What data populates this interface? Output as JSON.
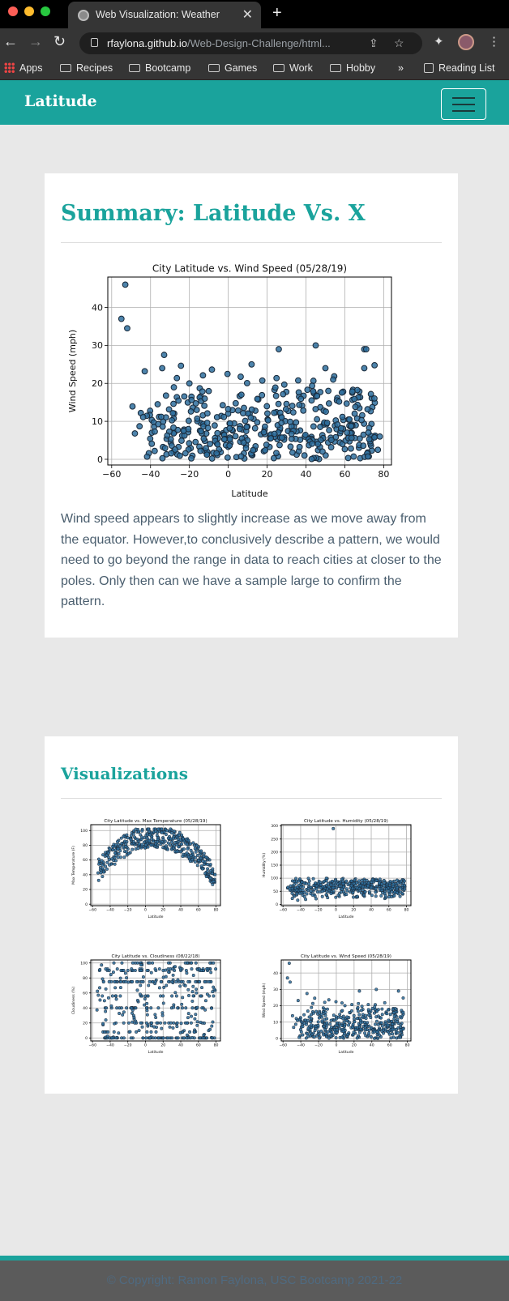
{
  "browser": {
    "tab_title": "Web Visualization: Weather",
    "url_host": "rfaylona.github.io",
    "url_path": "/Web-Design-Challenge/html...",
    "bookmarks": [
      "Apps",
      "Recipes",
      "Bootcamp",
      "Games",
      "Work",
      "Hobby"
    ],
    "overflow": "»",
    "reading_list": "Reading List"
  },
  "navbar": {
    "brand": "Latitude"
  },
  "summary": {
    "title": "Summary: Latitude Vs. X",
    "description": "Wind speed appears to slightly increase as we move away from the equator. However,to conclusively describe a pattern, we would need to go beyond the range in data to reach cities at closer to the poles. Only then can we have a sample large to confirm the pattern."
  },
  "visualizations": {
    "title": "Visualizations"
  },
  "footer": {
    "copyright": "© Copyright: Ramon Faylona, USC Bootcamp 2021-22"
  },
  "colors": {
    "teal": "#1aa39c",
    "point": "#2e6f9e",
    "point_edge": "#1a2a3a"
  },
  "chart_data": [
    {
      "id": "main-wind",
      "type": "scatter",
      "title": "City Latitude vs. Wind Speed (05/28/19)",
      "xlabel": "Latitude",
      "ylabel": "Wind Speed (mph)",
      "xlim": [
        -62,
        84
      ],
      "ylim": [
        -1.5,
        48
      ],
      "xticks": [
        -60,
        -40,
        -20,
        0,
        20,
        40,
        60,
        80
      ],
      "xtick_labels": [
        "−60",
        "−40",
        "−20",
        "0",
        "20",
        "40",
        "60",
        "80"
      ],
      "yticks": [
        0,
        10,
        20,
        30,
        40
      ],
      "grid": true,
      "highlights": [
        [
          -53,
          46
        ],
        [
          -55,
          37
        ],
        [
          -52,
          34.5
        ],
        [
          -33,
          27.5
        ],
        [
          -34,
          24
        ],
        [
          26,
          29
        ],
        [
          45,
          30
        ],
        [
          70,
          29
        ],
        [
          71,
          29
        ],
        [
          12,
          25
        ],
        [
          -20,
          20
        ],
        [
          70,
          24
        ],
        [
          50,
          24
        ],
        [
          54,
          21
        ],
        [
          78,
          6
        ],
        [
          77,
          2.5
        ]
      ],
      "generated": {
        "seed": 42,
        "n": 420,
        "xmin": -50,
        "xmax": 76,
        "ymax": 22,
        "skew": 0.55
      }
    },
    {
      "id": "thumb-temp",
      "type": "scatter",
      "title": "City Latitude vs. Max Temperature (05/28/19)",
      "xlabel": "Latitude",
      "ylabel": "Max Temperature (F)",
      "xlim": [
        -62,
        85
      ],
      "ylim": [
        -2,
        108
      ],
      "xticks": [
        -60,
        -40,
        -20,
        0,
        20,
        40,
        60,
        80
      ],
      "xtick_labels": [
        "−60",
        "−40",
        "−20",
        "0",
        "20",
        "40",
        "60",
        "80"
      ],
      "yticks": [
        0,
        20,
        40,
        60,
        80,
        100
      ],
      "grid": true,
      "generated": {
        "seed": 7,
        "n": 430,
        "xmin": -55,
        "xmax": 79,
        "shape": "arch"
      }
    },
    {
      "id": "thumb-humidity",
      "type": "scatter",
      "title": "City Latitude vs. Humidity (05/28/19)",
      "xlabel": "Latitude",
      "ylabel": "Humidity (%)",
      "xlim": [
        -62,
        85
      ],
      "ylim": [
        -5,
        305
      ],
      "xticks": [
        -60,
        -40,
        -20,
        0,
        20,
        40,
        60,
        80
      ],
      "xtick_labels": [
        "−60",
        "−40",
        "−20",
        "0",
        "20",
        "40",
        "60",
        "80"
      ],
      "yticks": [
        0,
        50,
        100,
        150,
        200,
        250,
        300
      ],
      "grid": true,
      "highlights": [
        [
          -3,
          290
        ]
      ],
      "generated": {
        "seed": 11,
        "n": 440,
        "xmin": -55,
        "xmax": 78,
        "shape": "band"
      }
    },
    {
      "id": "thumb-cloud",
      "type": "scatter",
      "title": "City Latitude vs. Cloudiness (08/22/18)",
      "xlabel": "Latitude",
      "ylabel": "Cloudiness (%)",
      "xlim": [
        -62,
        85
      ],
      "ylim": [
        -4,
        104
      ],
      "xticks": [
        -60,
        -40,
        -20,
        0,
        20,
        40,
        60,
        80
      ],
      "xtick_labels": [
        "−60",
        "−40",
        "−20",
        "0",
        "20",
        "40",
        "60",
        "80"
      ],
      "yticks": [
        0,
        20,
        40,
        60,
        80,
        100
      ],
      "grid": true,
      "generated": {
        "seed": 19,
        "n": 420,
        "xmin": -55,
        "xmax": 80,
        "shape": "levels"
      }
    },
    {
      "id": "thumb-wind",
      "type": "scatter",
      "title": "City Latitude vs. Wind Speed (05/28/19)",
      "xlabel": "Latitude",
      "ylabel": "Wind Speed (mph)",
      "xlim": [
        -62,
        84
      ],
      "ylim": [
        -1.5,
        48
      ],
      "xticks": [
        -60,
        -40,
        -20,
        0,
        20,
        40,
        60,
        80
      ],
      "xtick_labels": [
        "−60",
        "−40",
        "−20",
        "0",
        "20",
        "40",
        "60",
        "80"
      ],
      "yticks": [
        0,
        10,
        20,
        30,
        40
      ],
      "grid": true,
      "highlights": [
        [
          -53,
          46
        ],
        [
          -55,
          37
        ],
        [
          -52,
          34.5
        ],
        [
          -33,
          27.5
        ],
        [
          45,
          30
        ],
        [
          70,
          29
        ],
        [
          26,
          29
        ]
      ],
      "generated": {
        "seed": 42,
        "n": 420,
        "xmin": -50,
        "xmax": 76,
        "ymax": 22,
        "skew": 0.55
      }
    }
  ]
}
